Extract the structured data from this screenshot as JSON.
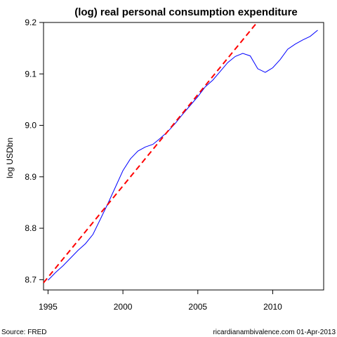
{
  "chart_data": {
    "type": "line",
    "title": "(log) real personal consumption expenditure",
    "xlabel": "",
    "ylabel": "log USDbn",
    "xlim": [
      1994.7,
      2013.4
    ],
    "ylim": [
      8.68,
      9.2
    ],
    "x_ticks": [
      1995,
      2000,
      2005,
      2010
    ],
    "y_ticks": [
      8.7,
      8.8,
      8.9,
      9.0,
      9.1,
      9.2
    ],
    "grid": false,
    "legend": "none",
    "series": [
      {
        "color": "#0000ff",
        "style": "solid",
        "x": [
          1995.0,
          1995.5,
          1996.0,
          1996.5,
          1997.0,
          1997.5,
          1998.0,
          1998.5,
          1999.0,
          1999.5,
          2000.0,
          2000.5,
          2001.0,
          2001.5,
          2002.0,
          2002.5,
          2003.0,
          2003.5,
          2004.0,
          2004.5,
          2005.0,
          2005.5,
          2006.0,
          2006.5,
          2007.0,
          2007.5,
          2008.0,
          2008.5,
          2009.0,
          2009.5,
          2010.0,
          2010.5,
          2011.0,
          2011.5,
          2012.0,
          2012.5,
          2013.0
        ],
        "values": [
          8.699,
          8.714,
          8.727,
          8.742,
          8.757,
          8.77,
          8.788,
          8.818,
          8.848,
          8.88,
          8.912,
          8.935,
          8.95,
          8.958,
          8.963,
          8.975,
          8.988,
          9.004,
          9.022,
          9.039,
          9.056,
          9.075,
          9.088,
          9.105,
          9.122,
          9.134,
          9.14,
          9.135,
          9.11,
          9.103,
          9.112,
          9.128,
          9.148,
          9.158,
          9.166,
          9.173,
          9.185
        ]
      },
      {
        "color": "#ff0000",
        "style": "dashed",
        "x": [
          1994.7,
          2008.95
        ],
        "values": [
          8.694,
          9.2
        ]
      }
    ]
  },
  "footer": {
    "source": "Source: FRED",
    "credit": "ricardianambivalence.com    01-Apr-2013"
  }
}
